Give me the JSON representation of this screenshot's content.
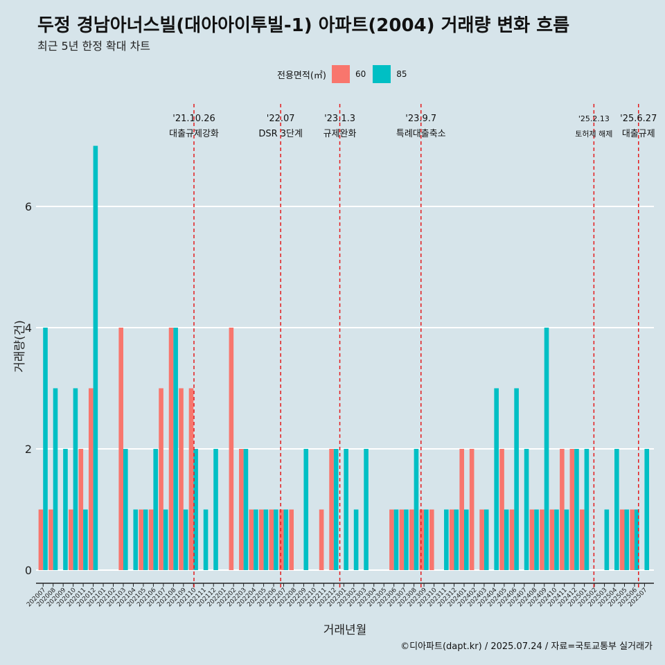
{
  "title": "두정 경남아너스빌(대아아이투빌-1) 아파트(2004) 거래량 변화 흐름",
  "subtitle": "최근 5년 한정 확대 차트",
  "caption": "©디아파트(dapt.kr) / 2025.07.24 / 자료=국토교통부 실거래가",
  "colors": {
    "background": "#d6e4ea",
    "series_60": "#f8766d",
    "series_85": "#00bfc4",
    "event_line": "#e41a1c",
    "gridline": "#ffffff"
  },
  "chart_data": {
    "type": "bar",
    "xlabel": "거래년월",
    "ylabel": "거래량(건)",
    "ylim": [
      0,
      7
    ],
    "yticks": [
      0,
      2,
      4,
      6
    ],
    "legend_title": "전용면적(㎡)",
    "legend_position": "top",
    "grid": true,
    "categories": [
      "202007",
      "202008",
      "202009",
      "202010",
      "202011",
      "202012",
      "202101",
      "202102",
      "202103",
      "202104",
      "202105",
      "202106",
      "202107",
      "202108",
      "202109",
      "202110",
      "202111",
      "202112",
      "202201",
      "202202",
      "202203",
      "202204",
      "202205",
      "202206",
      "202207",
      "202208",
      "202209",
      "202210",
      "202211",
      "202212",
      "202301",
      "202302",
      "202303",
      "202304",
      "202305",
      "202306",
      "202307",
      "202308",
      "202309",
      "202310",
      "202311",
      "202312",
      "202401",
      "202402",
      "202403",
      "202404",
      "202405",
      "202406",
      "202407",
      "202408",
      "202409",
      "202410",
      "202411",
      "202412",
      "202501",
      "202502",
      "202503",
      "202504",
      "202505",
      "202506",
      "202507"
    ],
    "series": [
      {
        "name": "60",
        "values": [
          1,
          1,
          0,
          1,
          2,
          3,
          0,
          0,
          4,
          0,
          1,
          1,
          3,
          4,
          3,
          3,
          0,
          0,
          0,
          4,
          2,
          1,
          1,
          1,
          1,
          1,
          0,
          0,
          1,
          2,
          0,
          0,
          0,
          0,
          0,
          1,
          1,
          1,
          1,
          1,
          0,
          1,
          2,
          2,
          1,
          0,
          2,
          1,
          0,
          1,
          1,
          1,
          2,
          2,
          1,
          0,
          0,
          0,
          1,
          1,
          0
        ]
      },
      {
        "name": "85",
        "values": [
          4,
          3,
          2,
          3,
          1,
          7,
          0,
          0,
          2,
          1,
          1,
          2,
          1,
          4,
          1,
          2,
          1,
          2,
          0,
          0,
          2,
          1,
          1,
          1,
          1,
          0,
          2,
          0,
          0,
          2,
          2,
          1,
          2,
          0,
          0,
          1,
          1,
          2,
          1,
          0,
          1,
          1,
          1,
          0,
          1,
          3,
          1,
          3,
          2,
          1,
          4,
          1,
          1,
          2,
          2,
          0,
          1,
          2,
          1,
          1,
          2
        ]
      }
    ],
    "events": [
      {
        "category": "202110",
        "position": 0.55,
        "date": "'21.10.26",
        "label": "대출규제강화"
      },
      {
        "category": "202207",
        "position": 0.2,
        "date": "'22.07",
        "label": "DSR 3단계"
      },
      {
        "category": "202301",
        "position": 0.1,
        "date": "'23.1.3",
        "label": "규제완화"
      },
      {
        "category": "202309",
        "position": 0.2,
        "date": "'23.9.7",
        "label": "특례대출축소"
      },
      {
        "category": "202502",
        "position": 0.45,
        "date": "'25.2.13",
        "label": "토허제 해제"
      },
      {
        "category": "202506",
        "position": 0.9,
        "date": "'25.6.27",
        "label": "대출규제"
      }
    ]
  }
}
